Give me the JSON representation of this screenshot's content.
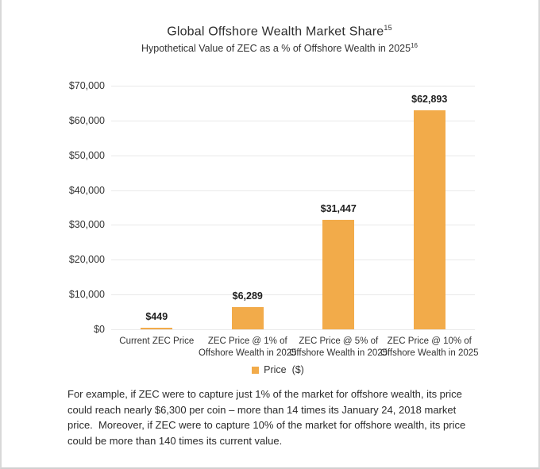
{
  "chart": {
    "title": "Global Offshore Wealth Market Share",
    "title_sup": "15",
    "subtitle": "Hypothetical Value of ZEC as a % of Offshore Wealth in 2025",
    "subtitle_sup": "16",
    "legend": {
      "label": "Price  ($)",
      "swatch_color": "#F2AB4A"
    }
  },
  "chart_data": {
    "type": "bar",
    "title": "Global Offshore Wealth Market Share",
    "subtitle": "Hypothetical Value of ZEC as a % of Offshore Wealth in 2025",
    "categories": [
      "Current ZEC Price",
      "ZEC Price @ 1% of\nOffshore Wealth in 2025",
      "ZEC Price @ 5% of\nOffshore Wealth in 2025",
      "ZEC Price @ 10% of\nOffshore Wealth in 2025"
    ],
    "values": [
      449,
      6289,
      31447,
      62893
    ],
    "value_labels": [
      "$449",
      "$6,289",
      "$31,447",
      "$62,893"
    ],
    "y_ticks": [
      70000,
      60000,
      50000,
      40000,
      30000,
      20000,
      10000,
      0
    ],
    "y_tick_labels": [
      "$70,000",
      "$60,000",
      "$50,000",
      "$40,000",
      "$30,000",
      "$20,000",
      "$10,000",
      "$0"
    ],
    "ylim": [
      0,
      70000
    ],
    "xlabel": "",
    "ylabel": "",
    "grid": true,
    "legend_entries": [
      "Price  ($)"
    ],
    "legend_position": "bottom",
    "bar_color": "#F2AB4A"
  },
  "caption": "For example, if ZEC were to capture just 1% of the market for offshore wealth, its price could reach nearly $6,300 per coin – more than 14 times its January 24, 2018 market price.  Moreover, if ZEC were to capture 10% of the market for offshore wealth, its price could be more than 140 times its current value."
}
